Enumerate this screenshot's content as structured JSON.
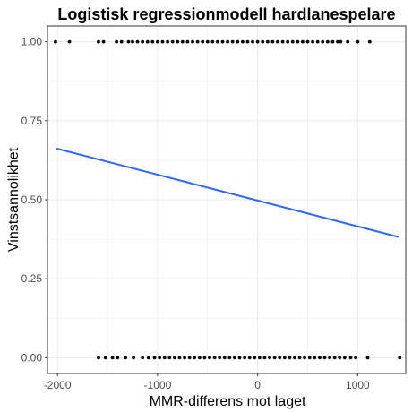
{
  "chart_data": {
    "type": "scatter",
    "title": "Logistisk regressionmodell hardlanespelare",
    "xlabel": "MMR-differens mot laget",
    "ylabel": "Vinstsannolikhet",
    "xlim": [
      -2100,
      1480
    ],
    "ylim": [
      -0.05,
      1.05
    ],
    "x_ticks": [
      -2000,
      -1000,
      0,
      1000
    ],
    "x_tick_labels": [
      "-2000",
      "-1000",
      "0",
      "1000"
    ],
    "y_ticks": [
      0,
      0.25,
      0.5,
      0.75,
      1
    ],
    "y_tick_labels": [
      "0.00",
      "0.25",
      "0.50",
      "0.75",
      "1.00"
    ],
    "grid": true,
    "colors": {
      "points": "#000000",
      "fit_line": "#3366FF",
      "grid": "#ebebeb",
      "border": "#333333"
    },
    "points_win": {
      "y": 1,
      "x": [
        -2020,
        -1880,
        -1590,
        -1540,
        -1410,
        -1360,
        -1290,
        -1250,
        -1200,
        -1150,
        -1100,
        -1050,
        -1000,
        -950,
        -900,
        -850,
        -800,
        -750,
        -700,
        -650,
        -600,
        -550,
        -500,
        -450,
        -400,
        -350,
        -300,
        -250,
        -200,
        -150,
        -100,
        -50,
        0,
        50,
        100,
        150,
        200,
        250,
        300,
        350,
        400,
        450,
        500,
        550,
        600,
        650,
        700,
        750,
        800,
        830,
        900,
        1000,
        1120
      ]
    },
    "points_loss": {
      "y": 0,
      "x": [
        -1590,
        -1520,
        -1450,
        -1400,
        -1320,
        -1240,
        -1150,
        -1090,
        -1030,
        -980,
        -930,
        -880,
        -830,
        -780,
        -730,
        -680,
        -630,
        -580,
        -530,
        -480,
        -430,
        -380,
        -330,
        -280,
        -230,
        -180,
        -130,
        -80,
        -30,
        20,
        70,
        120,
        170,
        220,
        270,
        320,
        370,
        420,
        470,
        520,
        570,
        620,
        670,
        720,
        770,
        820,
        870,
        930,
        980,
        1100,
        1420
      ]
    },
    "fit_line": {
      "name": "",
      "x": [
        -2010,
        1410
      ],
      "y": [
        0.662,
        0.382
      ]
    }
  }
}
